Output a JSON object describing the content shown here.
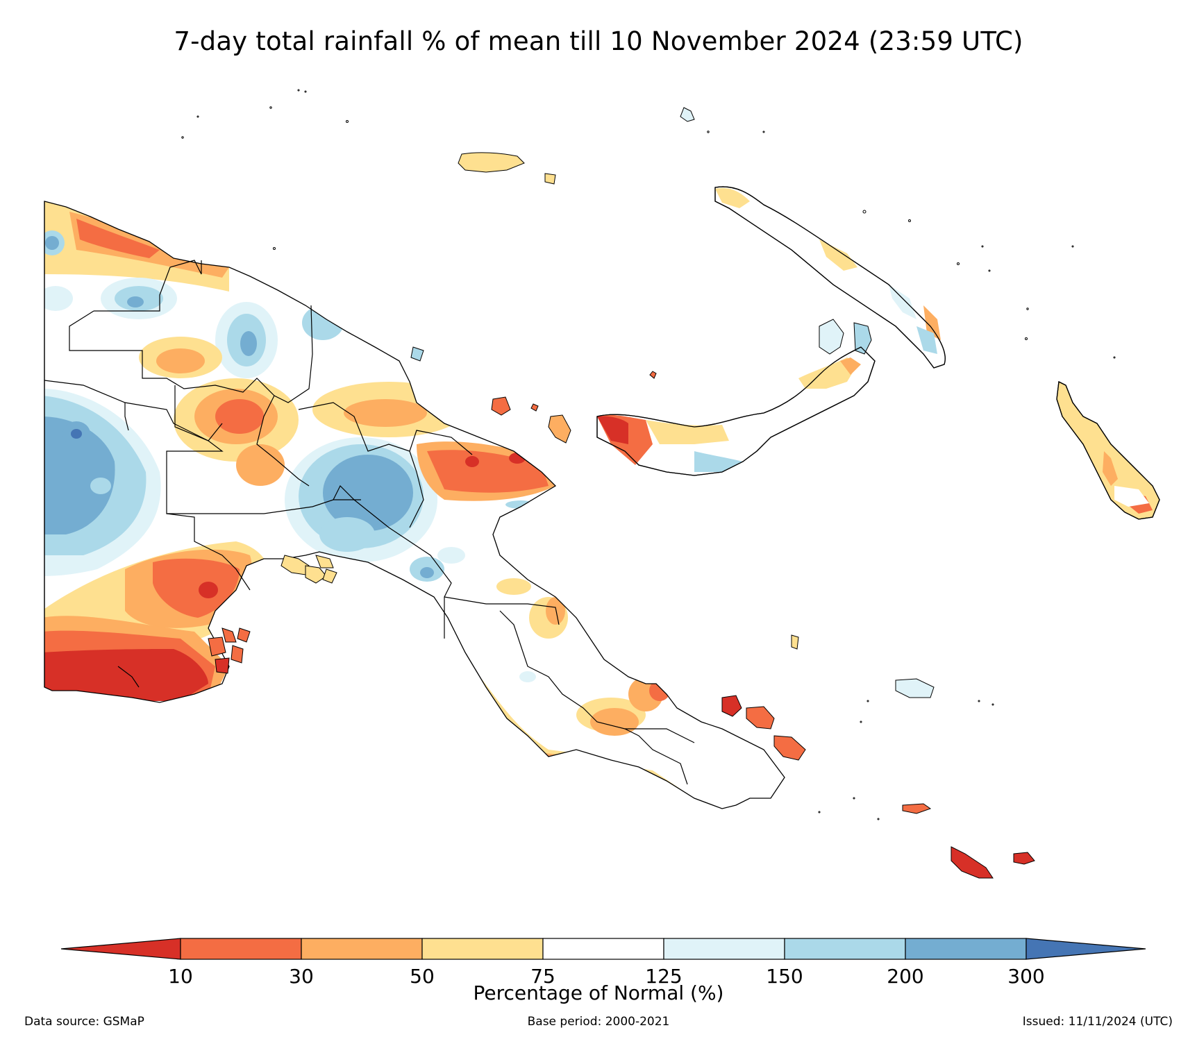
{
  "title": "7-day total rainfall % of mean till 10 November 2024 (23:59 UTC)",
  "colorbar": {
    "label": "Percentage of Normal (%)",
    "ticks": [
      "10",
      "30",
      "50",
      "75",
      "125",
      "150",
      "200",
      "300"
    ],
    "colors": [
      "#d73027",
      "#f46d43",
      "#fdae61",
      "#fee090",
      "#ffffff",
      "#e0f3f8",
      "#abd9e9",
      "#74add1",
      "#4575b4"
    ]
  },
  "footer": {
    "source": "Data source: GSMaP",
    "base_period": "Base period: 2000-2021",
    "issued": "Issued: 11/11/2024 (UTC)"
  },
  "map": {
    "region": "Papua New Guinea",
    "style": "filled contours over coastline and province boundaries"
  }
}
